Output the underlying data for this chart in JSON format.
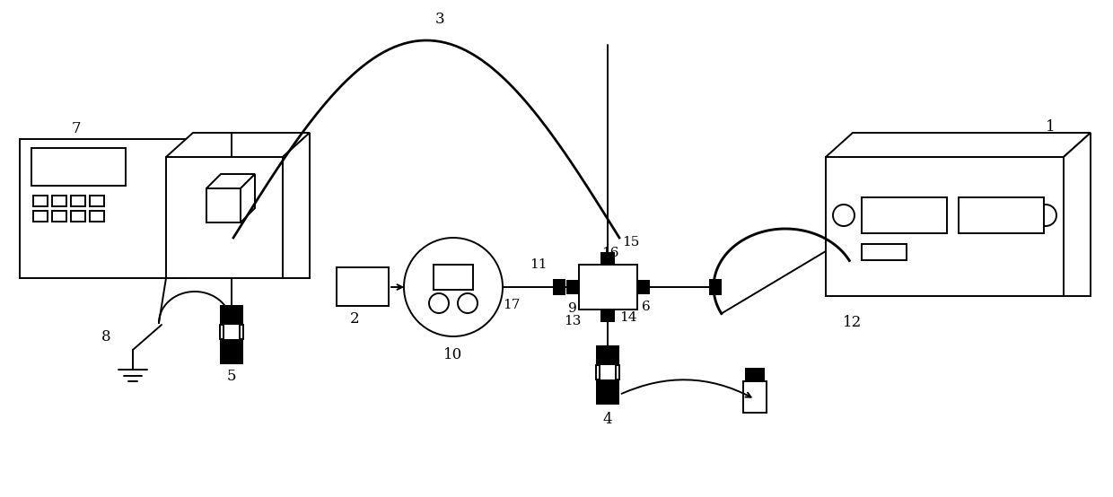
{
  "bg_color": "#ffffff",
  "lc": "#000000",
  "figsize": [
    12.4,
    5.54
  ],
  "dpi": 100,
  "lw": 1.4
}
